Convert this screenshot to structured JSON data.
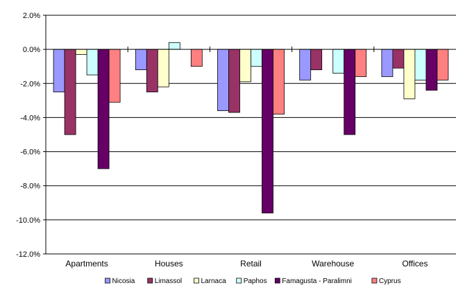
{
  "chart_data": {
    "type": "bar",
    "categories": [
      "Apartments",
      "Houses",
      "Retail",
      "Warehouse",
      "Offices"
    ],
    "ylim": [
      -12.0,
      2.0
    ],
    "yticks": [
      2.0,
      0.0,
      -2.0,
      -4.0,
      -6.0,
      -8.0,
      -10.0,
      -12.0
    ],
    "ytick_labels": [
      "2.0%",
      "0.0%",
      "-2.0%",
      "-4.0%",
      "-6.0%",
      "-8.0%",
      "-10.0%",
      "-12.0%"
    ],
    "grid": true,
    "legend_position": "bottom",
    "series": [
      {
        "name": "Nicosia",
        "color": "#9999ff",
        "values": [
          -2.5,
          -1.2,
          -3.6,
          -1.8,
          -1.6
        ]
      },
      {
        "name": "Limassol",
        "color": "#993366",
        "values": [
          -5.0,
          -2.5,
          -3.7,
          -1.2,
          -1.1
        ]
      },
      {
        "name": "Larnaca",
        "color": "#ffffcc",
        "values": [
          -0.3,
          -2.2,
          -1.9,
          0.0,
          -2.9
        ]
      },
      {
        "name": "Paphos",
        "color": "#ccffff",
        "values": [
          -1.5,
          0.4,
          -1.0,
          -1.4,
          -1.8
        ]
      },
      {
        "name": "Famagusta - Paralimni",
        "color": "#660066",
        "values": [
          -7.0,
          0.0,
          -9.6,
          -5.0,
          -2.4
        ]
      },
      {
        "name": "Cyprus",
        "color": "#ff8080",
        "values": [
          -3.1,
          -1.0,
          -3.8,
          -1.6,
          -1.8
        ]
      }
    ]
  }
}
